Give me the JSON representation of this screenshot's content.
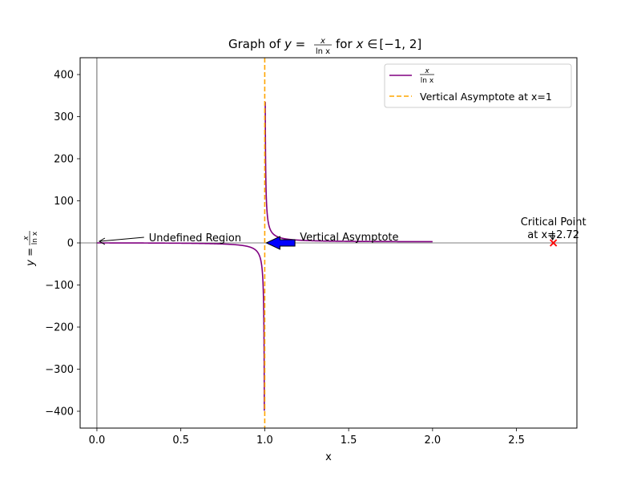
{
  "chart_data": {
    "type": "line",
    "title": {
      "prefix": "Graph of ",
      "y_eq": "y =",
      "frac_num": "x",
      "frac_den": "ln x",
      "for_text": "for",
      "x_in": "x ∈",
      "interval": "[−1, 2]"
    },
    "xlabel": "x",
    "ylabel": {
      "y_eq": "y =",
      "frac_num": "x",
      "frac_den": "ln x"
    },
    "xlim": [
      -0.1,
      2.86
    ],
    "ylim": [
      -440,
      440
    ],
    "x_ticks": [
      0.0,
      0.5,
      1.0,
      1.5,
      2.0,
      2.5
    ],
    "x_tick_labels": [
      "0.0",
      "0.5",
      "1.0",
      "1.5",
      "2.0",
      "2.5"
    ],
    "y_ticks": [
      -400,
      -300,
      -200,
      -100,
      0,
      100,
      200,
      300,
      400
    ],
    "y_tick_labels": [
      "−400",
      "−300",
      "−200",
      "−100",
      "0",
      "100",
      "200",
      "300",
      "400"
    ],
    "grid": false,
    "legend_placement": "upper-right",
    "series": [
      {
        "name_num": "x",
        "name_den": "ln x",
        "function": "x / ln(x)",
        "domain": [
          0.001,
          2.0
        ],
        "y_clip": [
          -400,
          400
        ],
        "color": "#800080"
      },
      {
        "name": "Vertical Asymptote at x=1",
        "kind": "vline",
        "x": 1.0,
        "color": "#FFA500",
        "style": "dashed"
      }
    ],
    "reference_lines": {
      "horizontal_y": 0,
      "vertical_x": 0,
      "color": "#000000"
    },
    "critical_point": {
      "x": 2.72,
      "y": 0,
      "marker": "x",
      "color": "#FF0000"
    },
    "annotations": [
      {
        "text": "Undefined Region",
        "point_x": 0.0,
        "point_y": 0,
        "text_x": 0.3,
        "text_y": 0,
        "arrow": "thin",
        "color": "#000000"
      },
      {
        "text": "Vertical Asymptote",
        "point_x": 1.0,
        "point_y": 0,
        "text_x": 1.2,
        "text_y": 0,
        "arrow": "fancy",
        "color": "#0000FF"
      },
      {
        "lines": [
          "Critical Point",
          "at x=2.72"
        ],
        "point_x": 2.72,
        "point_y": 0,
        "text_x": 2.72,
        "text_y": 20,
        "arrow": "thin",
        "color": "#000000"
      }
    ]
  }
}
